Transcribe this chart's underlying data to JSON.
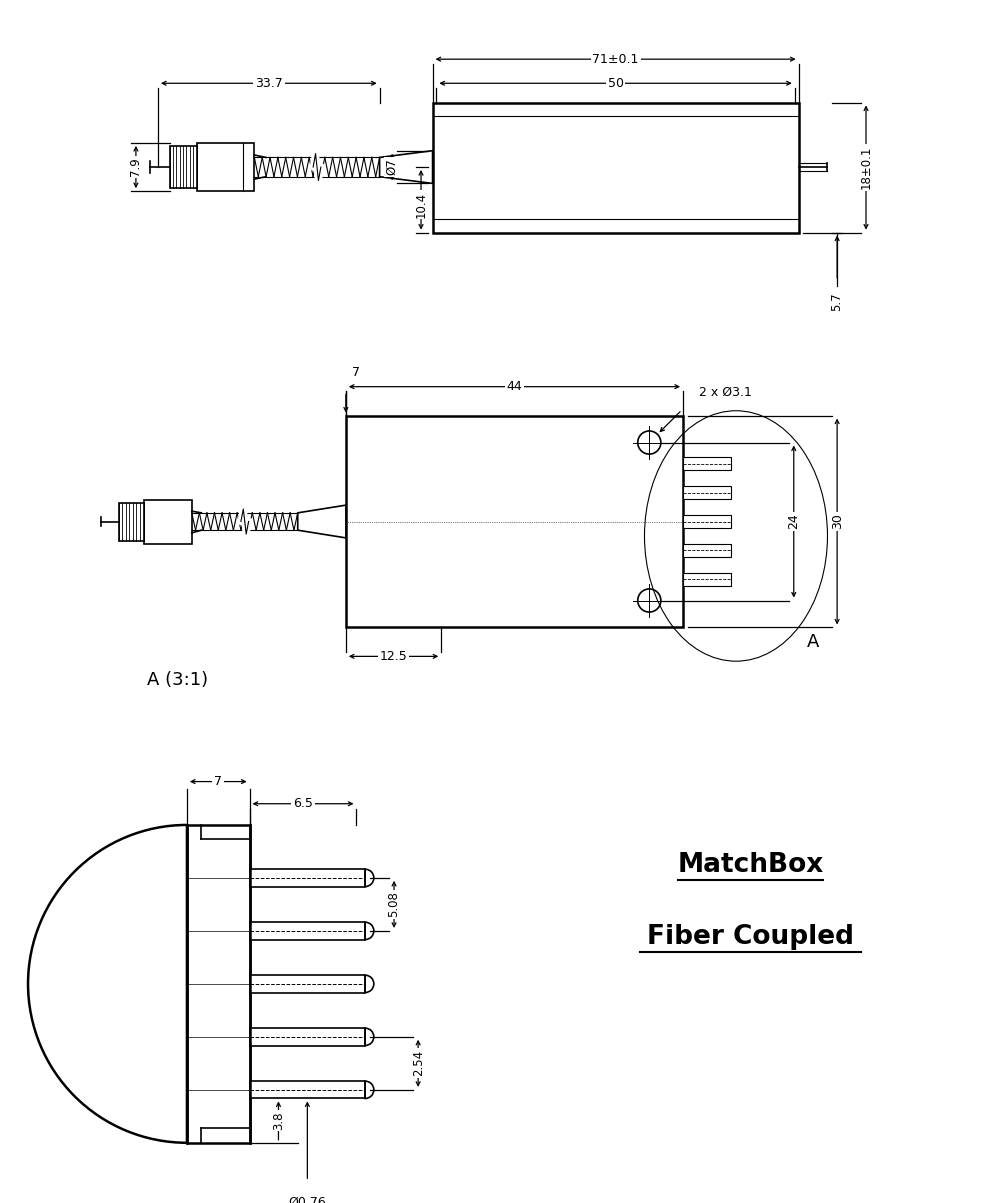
{
  "bg_color": "#ffffff",
  "line_color": "#000000",
  "title1": "MatchBox",
  "title2": "Fiber Coupled",
  "dims_v1": {
    "total_len": "71±0.1",
    "body_len": "50",
    "fiber_len": "33.7",
    "diam7": "Ø7",
    "height_top": "10.4",
    "height18": "18±0.1",
    "height57": "5.7",
    "height79": "7.9"
  },
  "dims_v2": {
    "width44": "44",
    "depth7": "7",
    "holes": "2 x Ø3.1",
    "height12_5": "12.5",
    "height24": "24",
    "height30": "30"
  },
  "dims_v3": {
    "width7": "7",
    "width6_5": "6.5",
    "spacing5_08": "5.08",
    "spacing2_54": "2.54",
    "len3_8": "3.8",
    "dia0_76": "Ø0.76"
  },
  "label_A": "A",
  "label_A_scale": "A (3:1)"
}
